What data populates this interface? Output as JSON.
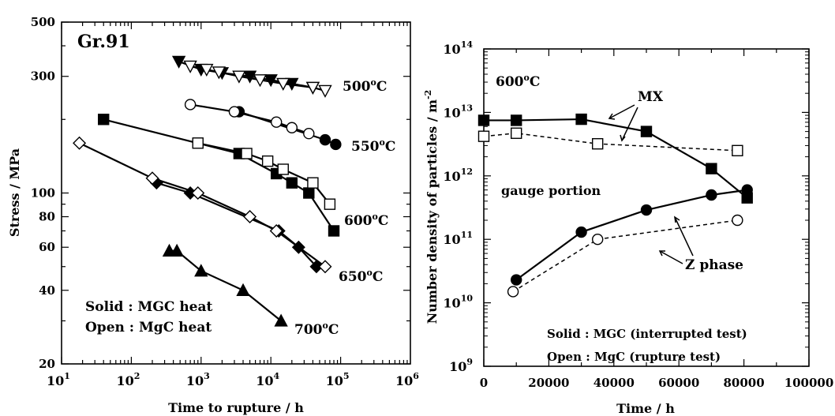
{
  "chart_data": [
    {
      "type": "scatter",
      "x_scale": "log",
      "y_scale": "log",
      "xlim": [
        10,
        1000000
      ],
      "ylim": [
        20,
        500
      ],
      "xlabel": "Time to rupture / h",
      "ylabel": "Stress / MPa",
      "x_ticks": [
        {
          "value": 10,
          "base": "10",
          "exp": "1"
        },
        {
          "value": 100,
          "base": "10",
          "exp": "2"
        },
        {
          "value": 1000,
          "base": "10",
          "exp": "3"
        },
        {
          "value": 10000,
          "base": "10",
          "exp": "4"
        },
        {
          "value": 100000,
          "base": "10",
          "exp": "5"
        },
        {
          "value": 1000000,
          "base": "10",
          "exp": "6"
        }
      ],
      "y_ticks": [
        {
          "value": 20,
          "label": "20"
        },
        {
          "value": 40,
          "label": "40"
        },
        {
          "value": 60,
          "label": "60"
        },
        {
          "value": 80,
          "label": "80"
        },
        {
          "value": 100,
          "label": "100"
        },
        {
          "value": 300,
          "label": "300"
        },
        {
          "value": 500,
          "label": "500"
        }
      ],
      "texts": [
        {
          "key": "steel",
          "label": "Gr.91"
        },
        {
          "key": "solid",
          "label": "Solid : MGC heat"
        },
        {
          "key": "open",
          "label": "Open : MgC heat"
        }
      ],
      "series": [
        {
          "name": "500°C",
          "label_base": "500",
          "label_sup": "o",
          "label_unit": "C",
          "marker": "triangle-down",
          "filled": true,
          "connect": true,
          "x": [
            480,
            1000,
            2000,
            5000,
            10000,
            20000,
            40000
          ],
          "y": [
            345,
            320,
            310,
            300,
            290,
            280,
            270
          ]
        },
        {
          "name": "500°C",
          "marker": "triangle-down",
          "filled": false,
          "connect": true,
          "x": [
            700,
            1200,
            1800,
            3500,
            7000,
            15000,
            40000,
            60000
          ],
          "y": [
            330,
            320,
            312,
            300,
            290,
            280,
            270,
            262
          ]
        },
        {
          "name": "550°C",
          "label_base": "550",
          "label_sup": "o",
          "label_unit": "C",
          "marker": "circle",
          "filled": true,
          "connect": true,
          "x": [
            3500,
            60000,
            85000
          ],
          "y": [
            215,
            165,
            158
          ]
        },
        {
          "name": "550°C",
          "marker": "circle",
          "filled": false,
          "connect": true,
          "x": [
            700,
            3000,
            12000,
            20000,
            35000
          ],
          "y": [
            230,
            215,
            195,
            185,
            175
          ]
        },
        {
          "name": "600°C",
          "label_base": "600",
          "label_sup": "o",
          "label_unit": "C",
          "marker": "square",
          "filled": true,
          "connect": true,
          "x": [
            40,
            3500,
            12000,
            20000,
            35000,
            80000
          ],
          "y": [
            200,
            145,
            120,
            110,
            100,
            70
          ]
        },
        {
          "name": "600°C",
          "marker": "square",
          "filled": false,
          "connect": true,
          "x": [
            900,
            4500,
            9000,
            15000,
            40000,
            70000
          ],
          "y": [
            160,
            145,
            135,
            125,
            110,
            90
          ]
        },
        {
          "name": "650°C",
          "label_base": "650",
          "label_sup": "o",
          "label_unit": "C",
          "marker": "diamond",
          "filled": true,
          "connect": true,
          "x": [
            230,
            700,
            13000,
            25000,
            45000
          ],
          "y": [
            110,
            100,
            70,
            60,
            50
          ]
        },
        {
          "name": "650°C",
          "marker": "diamond",
          "filled": false,
          "connect": true,
          "x": [
            18,
            200,
            900,
            5000,
            12000,
            60000
          ],
          "y": [
            160,
            115,
            100,
            80,
            70,
            50
          ]
        },
        {
          "name": "700°C",
          "label_base": "700",
          "label_sup": "o",
          "label_unit": "C",
          "marker": "triangle-up",
          "filled": true,
          "connect": true,
          "x": [
            350,
            450,
            1000,
            4000,
            14000
          ],
          "y": [
            58,
            58,
            48,
            40,
            30
          ]
        }
      ]
    },
    {
      "type": "line",
      "x_scale": "linear",
      "y_scale": "log",
      "xlim": [
        0,
        100000
      ],
      "ylim": [
        1000000000,
        100000000000000
      ],
      "xlabel": "Time / h",
      "ylabel": "Number density of particles / m",
      "ylabel_sup": "-2",
      "x_ticks": [
        {
          "value": 0,
          "label": "0"
        },
        {
          "value": 20000,
          "label": "20000"
        },
        {
          "value": 40000,
          "label": "40000"
        },
        {
          "value": 60000,
          "label": "60000"
        },
        {
          "value": 80000,
          "label": "80000"
        },
        {
          "value": 100000,
          "label": "100000"
        }
      ],
      "y_ticks": [
        {
          "value": 1000000000,
          "base": "10",
          "exp": "9"
        },
        {
          "value": 10000000000,
          "base": "10",
          "exp": "10"
        },
        {
          "value": 100000000000,
          "base": "10",
          "exp": "11"
        },
        {
          "value": 1000000000000,
          "base": "10",
          "exp": "12"
        },
        {
          "value": 10000000000000,
          "base": "10",
          "exp": "13"
        },
        {
          "value": 100000000000000,
          "base": "10",
          "exp": "14"
        }
      ],
      "texts": [
        {
          "key": "temp_base",
          "label": "600"
        },
        {
          "key": "temp_sup",
          "label": "o"
        },
        {
          "key": "temp_unit",
          "label": "C"
        },
        {
          "key": "mx",
          "label": "MX"
        },
        {
          "key": "gauge",
          "label": "gauge portion"
        },
        {
          "key": "zphase",
          "label": "Z phase"
        },
        {
          "key": "solid",
          "label": "Solid : MGC (interrupted test)"
        },
        {
          "key": "open",
          "label": "Open : MgC (rupture test)"
        }
      ],
      "series": [
        {
          "name": "MX",
          "marker": "square",
          "filled": true,
          "dashed": false,
          "x": [
            0,
            10000,
            30000,
            50000,
            70000,
            81000
          ],
          "y": [
            7500000000000,
            7500000000000,
            7800000000000,
            5000000000000,
            1300000000000,
            450000000000
          ]
        },
        {
          "name": "MX",
          "marker": "square",
          "filled": false,
          "dashed": true,
          "x": [
            0,
            10000,
            35000,
            78000
          ],
          "y": [
            4200000000000,
            4700000000000,
            3200000000000,
            2500000000000
          ]
        },
        {
          "name": "Z phase",
          "marker": "circle",
          "filled": true,
          "dashed": false,
          "x": [
            10000,
            30000,
            50000,
            70000,
            81000
          ],
          "y": [
            23000000000,
            130000000000,
            290000000000,
            500000000000,
            600000000000
          ]
        },
        {
          "name": "Z phase",
          "marker": "circle",
          "filled": false,
          "dashed": true,
          "x": [
            9000,
            35000,
            78000
          ],
          "y": [
            15000000000,
            100000000000,
            200000000000
          ]
        }
      ]
    }
  ]
}
